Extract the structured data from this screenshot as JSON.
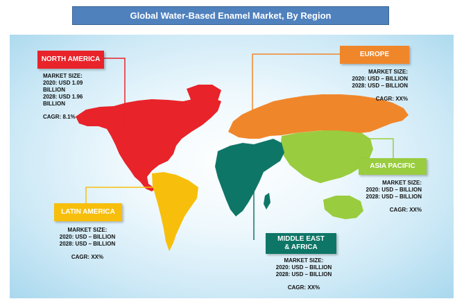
{
  "title": "Global Water-Based Enamel Market, By Region",
  "colors": {
    "north_america": "#e8232a",
    "europe": "#f0862a",
    "asia_pacific": "#99cc3e",
    "middle_east_africa": "#0e7667",
    "latin_america": "#f7bf0c",
    "title_bar": "#4f81bd",
    "ocean": "#cde9f6"
  },
  "regions": {
    "north_america": {
      "name": "NORTH AMERICA",
      "market_size_label": "MARKET SIZE:",
      "line_2020": "2020: USD 1.09",
      "line_2020b": "BILLION",
      "line_2028": "2028: USD 1.96",
      "line_2028b": "BILLION",
      "cagr": "CAGR: 8.1%"
    },
    "europe": {
      "name": "EUROPE",
      "market_size_label": "MARKET SIZE:",
      "line_2020": "2020: USD – BILLION",
      "line_2028": "2028: USD – BILLION",
      "cagr": "CAGR: XX%"
    },
    "asia_pacific": {
      "name": "ASIA PACIFIC",
      "market_size_label": "MARKET SIZE:",
      "line_2020": "2020: USD – BILLION",
      "line_2028": "2028: USD – BILLION",
      "cagr": "CAGR: XX%"
    },
    "latin_america": {
      "name": "LATIN AMERICA",
      "market_size_label": "MARKET SIZE:",
      "line_2020": "2020: USD – BILLION",
      "line_2028": "2028: USD – BILLION",
      "cagr": "CAGR: XX%"
    },
    "middle_east_africa": {
      "name_line1": "MIDDLE EAST",
      "name_line2": "& AFRICA",
      "market_size_label": "MARKET SIZE:",
      "line_2020": "2020: USD – BILLION",
      "line_2028": "2028: USD – BILLION",
      "cagr": "CAGR: XX%"
    }
  }
}
